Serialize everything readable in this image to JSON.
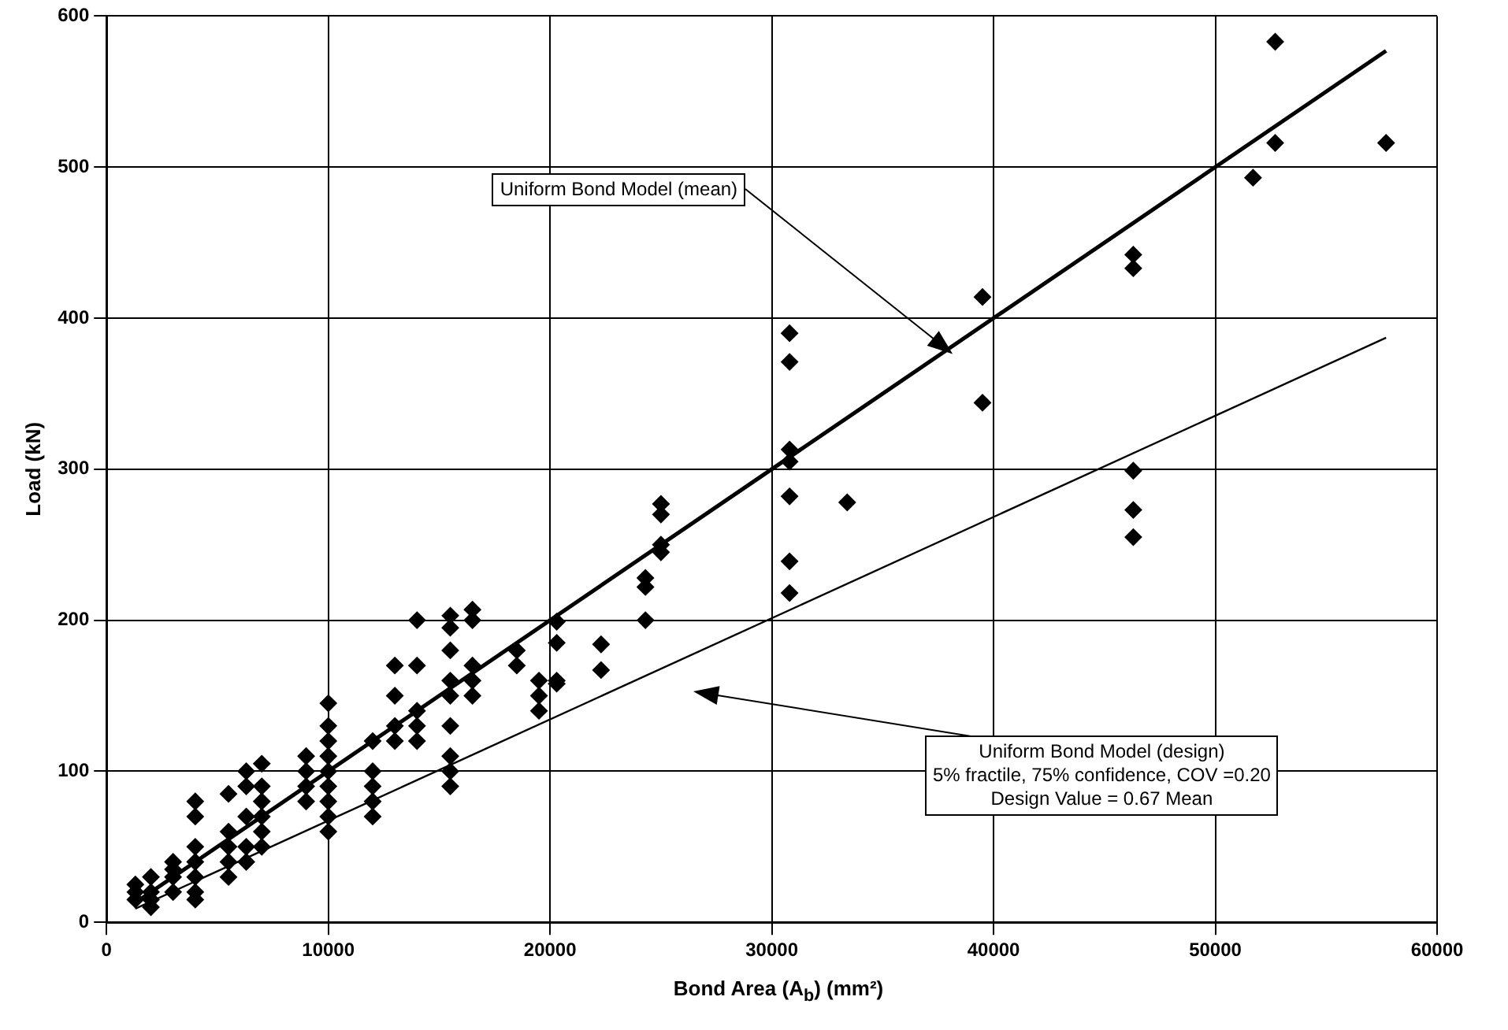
{
  "chart_data": {
    "type": "scatter",
    "xlabel": "Bond Area (A$_{b}$) (mm²)",
    "ylabel": "Load (kN)",
    "xlim": [
      0,
      60000
    ],
    "ylim": [
      0,
      600
    ],
    "xticks": [
      0,
      10000,
      20000,
      30000,
      40000,
      50000,
      60000
    ],
    "yticks": [
      0,
      100,
      200,
      300,
      400,
      500,
      600
    ],
    "grid": true,
    "legend": false,
    "marker": "diamond",
    "series": [
      {
        "color": "#000000",
        "x": [
          1300,
          1300,
          1300,
          2000,
          2000,
          2000,
          2000,
          3000,
          3000,
          3000,
          3000,
          4000,
          4000,
          4000,
          4000,
          4000,
          4000,
          4000,
          5500,
          5500,
          5500,
          5500,
          5500,
          6300,
          6300,
          6300,
          6300,
          6300,
          7000,
          7000,
          7000,
          7000,
          7000,
          7000,
          9000,
          9000,
          9000,
          9000,
          10000,
          10000,
          10000,
          10000,
          10000,
          10000,
          10000,
          10000,
          10000,
          12000,
          12000,
          12000,
          12000,
          12000,
          13000,
          13000,
          13000,
          13000,
          14000,
          14000,
          14000,
          14000,
          14000,
          15500,
          15500,
          15500,
          15500,
          15500,
          15500,
          15500,
          15500,
          15500,
          16500,
          16500,
          16500,
          16500,
          16500,
          18500,
          18500,
          19500,
          19500,
          19500,
          20300,
          20300,
          20300,
          20300,
          22300,
          22300,
          24300,
          24300,
          24300,
          25000,
          25000,
          25000,
          25000,
          30800,
          30800,
          30800,
          30800,
          30800,
          30800,
          30800,
          33400,
          39500,
          39500,
          46300,
          46300,
          46300,
          46300,
          46300,
          51700,
          52700,
          52700,
          57700
        ],
        "values": [
          25,
          20,
          15,
          30,
          20,
          15,
          10,
          40,
          35,
          30,
          20,
          80,
          70,
          50,
          40,
          30,
          20,
          15,
          85,
          60,
          50,
          40,
          30,
          100,
          90,
          70,
          50,
          40,
          105,
          90,
          80,
          70,
          60,
          50,
          110,
          100,
          90,
          80,
          145,
          130,
          120,
          110,
          100,
          90,
          80,
          70,
          60,
          120,
          100,
          90,
          80,
          70,
          170,
          150,
          130,
          120,
          200,
          170,
          140,
          130,
          120,
          203,
          195,
          180,
          160,
          150,
          130,
          110,
          100,
          90,
          207,
          200,
          170,
          160,
          150,
          180,
          170,
          160,
          150,
          140,
          199,
          185,
          160,
          158,
          184,
          167,
          228,
          222,
          200,
          277,
          270,
          250,
          245,
          390,
          371,
          313,
          305,
          282,
          239,
          218,
          278,
          414,
          344,
          442,
          433,
          299,
          273,
          255,
          493,
          583,
          516,
          516
        ]
      },
      {
        "type": "line",
        "color": "#000000",
        "marker": "none",
        "x": [
          1300,
          57700
        ],
        "values": [
          13,
          577
        ]
      },
      {
        "type": "line",
        "color": "#000000",
        "marker": "none",
        "x": [
          1300,
          57700
        ],
        "values": [
          9,
          387
        ]
      }
    ],
    "annotations": [
      "Uniform Bond Model (mean)",
      "Uniform Bond Model (design)\n5% fractile, 75% confidence, COV =0.20\nDesign Value = 0.67 Mean"
    ]
  }
}
